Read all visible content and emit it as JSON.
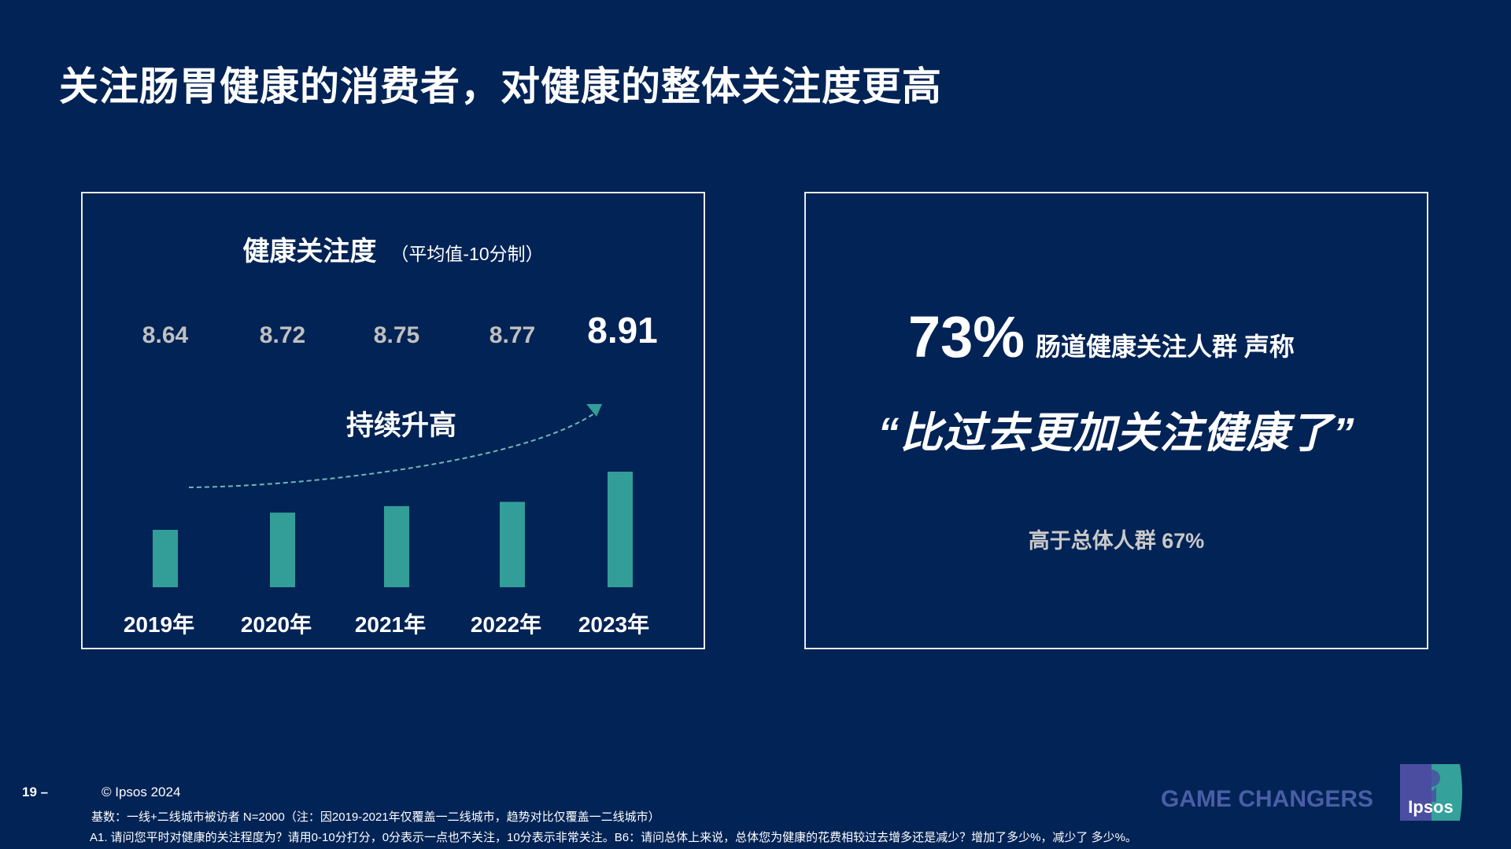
{
  "title": "关注肠胃健康的消费者，对健康的整体关注度更高",
  "left_panel": {
    "title": "健康关注度",
    "subtitle": "（平均值-10分制）",
    "trend_label": "持续升高"
  },
  "chart_data": {
    "type": "bar",
    "title": "健康关注度",
    "subtitle": "（平均值-10分制）",
    "categories": [
      "2019年",
      "2020年",
      "2021年",
      "2022年",
      "2023年"
    ],
    "values": [
      8.64,
      8.72,
      8.75,
      8.77,
      8.91
    ],
    "value_labels": [
      "8.64",
      "8.72",
      "8.75",
      "8.77",
      "8.91"
    ],
    "highlight_index": 4,
    "annotation": "持续升高",
    "bar_color": "#339e98",
    "label_color": "#c0c0c0",
    "highlight_label_color": "#ffffff",
    "grid": false,
    "legend": "none"
  },
  "right_panel": {
    "percent": "73%",
    "claim": "肠道健康关注人群 声称",
    "quote": "“比过去更加关注健康了”",
    "comparison": "高于总体人群 67%"
  },
  "footer": {
    "page_number": "19 –",
    "copyright": "© Ipsos 2024",
    "base_note": "基数：一线+二线城市被访者  N=2000（注：因2019-2021年仅覆盖一二线城市，趋势对比仅覆盖一二线城市）",
    "question_note": "A1. 请问您平时对健康的关注程度为？请用0-10分打分，0分表示一点也不关注，10分表示非常关注。B6：请问总体上来说，总体您为健康的花费相较过去增多还是减少？增加了多少%，减少了 多少%。",
    "tagline": "GAME CHANGERS",
    "logo_text": "Ipsos"
  },
  "colors": {
    "background": "#022355",
    "accent": "#339e98",
    "tagline": "#4a5ea6"
  }
}
